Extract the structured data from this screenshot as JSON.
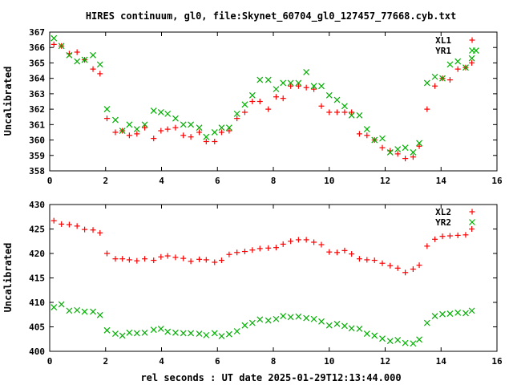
{
  "title": "HIRES continuum, gl0, file:Skynet_60704_gl0_127457_77668.cyb.txt",
  "xlabel": "rel seconds : UT date 2025-01-29T12:13:44.000",
  "colors": {
    "red": "#ff0000",
    "green": "#00b000"
  },
  "chart_data": [
    {
      "type": "scatter",
      "ylabel": "Uncalibrated",
      "xlim": [
        0,
        16
      ],
      "ylim": [
        358,
        367
      ],
      "xticks": [
        "0",
        "2",
        "4",
        "6",
        "8",
        "10",
        "12",
        "14",
        "16"
      ],
      "yticks": [
        "358",
        "359",
        "360",
        "361",
        "362",
        "363",
        "364",
        "365",
        "366",
        "367"
      ],
      "legend_position": "top-right",
      "grid": false,
      "series": [
        {
          "name": "XL1",
          "marker": "plus",
          "color": "#ff0000",
          "points": [
            [
              0.15,
              366.2
            ],
            [
              0.42,
              366.1
            ],
            [
              0.7,
              365.6
            ],
            [
              0.98,
              365.7
            ],
            [
              1.25,
              365.2
            ],
            [
              1.55,
              364.6
            ],
            [
              1.8,
              364.3
            ],
            [
              2.05,
              361.4
            ],
            [
              2.35,
              360.5
            ],
            [
              2.6,
              360.6
            ],
            [
              2.85,
              360.3
            ],
            [
              3.12,
              360.4
            ],
            [
              3.4,
              360.8
            ],
            [
              3.72,
              360.1
            ],
            [
              3.98,
              360.6
            ],
            [
              4.22,
              360.7
            ],
            [
              4.5,
              360.8
            ],
            [
              4.78,
              360.3
            ],
            [
              5.05,
              360.2
            ],
            [
              5.35,
              360.5
            ],
            [
              5.6,
              359.9
            ],
            [
              5.9,
              359.9
            ],
            [
              6.15,
              360.5
            ],
            [
              6.42,
              360.6
            ],
            [
              6.7,
              361.4
            ],
            [
              6.98,
              361.8
            ],
            [
              7.25,
              362.5
            ],
            [
              7.52,
              362.5
            ],
            [
              7.82,
              362.0
            ],
            [
              8.1,
              362.8
            ],
            [
              8.35,
              362.7
            ],
            [
              8.62,
              363.5
            ],
            [
              8.9,
              363.5
            ],
            [
              9.18,
              363.4
            ],
            [
              9.45,
              363.3
            ],
            [
              9.72,
              362.2
            ],
            [
              10.0,
              361.8
            ],
            [
              10.28,
              361.8
            ],
            [
              10.55,
              361.8
            ],
            [
              10.8,
              361.8
            ],
            [
              11.08,
              360.4
            ],
            [
              11.35,
              360.3
            ],
            [
              11.62,
              360.0
            ],
            [
              11.9,
              359.5
            ],
            [
              12.18,
              359.3
            ],
            [
              12.45,
              359.1
            ],
            [
              12.72,
              358.8
            ],
            [
              13.0,
              358.9
            ],
            [
              13.22,
              359.6
            ],
            [
              13.5,
              362.0
            ],
            [
              13.78,
              363.5
            ],
            [
              14.05,
              364.0
            ],
            [
              14.32,
              363.9
            ],
            [
              14.6,
              364.6
            ],
            [
              14.88,
              364.7
            ],
            [
              15.1,
              365.0
            ]
          ]
        },
        {
          "name": "YR1",
          "marker": "cross",
          "color": "#00b000",
          "points": [
            [
              0.15,
              366.6
            ],
            [
              0.42,
              366.1
            ],
            [
              0.7,
              365.5
            ],
            [
              0.98,
              365.1
            ],
            [
              1.25,
              365.2
            ],
            [
              1.55,
              365.5
            ],
            [
              1.8,
              364.9
            ],
            [
              2.05,
              362.0
            ],
            [
              2.35,
              361.3
            ],
            [
              2.6,
              360.6
            ],
            [
              2.85,
              361.0
            ],
            [
              3.12,
              360.7
            ],
            [
              3.4,
              361.0
            ],
            [
              3.72,
              361.9
            ],
            [
              3.98,
              361.8
            ],
            [
              4.22,
              361.7
            ],
            [
              4.5,
              361.4
            ],
            [
              4.78,
              361.0
            ],
            [
              5.05,
              361.0
            ],
            [
              5.35,
              360.8
            ],
            [
              5.6,
              360.2
            ],
            [
              5.9,
              360.5
            ],
            [
              6.15,
              360.8
            ],
            [
              6.42,
              360.8
            ],
            [
              6.7,
              361.7
            ],
            [
              6.98,
              362.3
            ],
            [
              7.25,
              362.9
            ],
            [
              7.52,
              363.9
            ],
            [
              7.82,
              363.9
            ],
            [
              8.1,
              363.3
            ],
            [
              8.35,
              363.7
            ],
            [
              8.62,
              363.7
            ],
            [
              8.9,
              363.7
            ],
            [
              9.18,
              364.4
            ],
            [
              9.45,
              363.5
            ],
            [
              9.72,
              363.5
            ],
            [
              10.0,
              362.9
            ],
            [
              10.28,
              362.6
            ],
            [
              10.55,
              362.2
            ],
            [
              10.8,
              361.6
            ],
            [
              11.08,
              361.6
            ],
            [
              11.35,
              360.7
            ],
            [
              11.62,
              360.0
            ],
            [
              11.9,
              360.1
            ],
            [
              12.18,
              359.2
            ],
            [
              12.45,
              359.4
            ],
            [
              12.72,
              359.5
            ],
            [
              13.0,
              359.2
            ],
            [
              13.22,
              359.8
            ],
            [
              13.5,
              363.7
            ],
            [
              13.78,
              364.1
            ],
            [
              14.05,
              364.0
            ],
            [
              14.32,
              364.9
            ],
            [
              14.6,
              365.1
            ],
            [
              14.88,
              364.7
            ],
            [
              15.1,
              365.3
            ],
            [
              15.25,
              365.8
            ]
          ]
        }
      ]
    },
    {
      "type": "scatter",
      "ylabel": "Uncalibrated",
      "xlim": [
        0,
        16
      ],
      "ylim": [
        400,
        430
      ],
      "xticks": [
        "0",
        "2",
        "4",
        "6",
        "8",
        "10",
        "12",
        "14",
        "16"
      ],
      "yticks": [
        "400",
        "405",
        "410",
        "415",
        "420",
        "425",
        "430"
      ],
      "legend_position": "top-right",
      "grid": false,
      "series": [
        {
          "name": "XL2",
          "marker": "plus",
          "color": "#ff0000",
          "points": [
            [
              0.15,
              426.7
            ],
            [
              0.42,
              426.0
            ],
            [
              0.7,
              425.9
            ],
            [
              0.98,
              425.6
            ],
            [
              1.25,
              424.9
            ],
            [
              1.55,
              424.8
            ],
            [
              1.8,
              424.2
            ],
            [
              2.05,
              420.0
            ],
            [
              2.35,
              418.9
            ],
            [
              2.6,
              418.9
            ],
            [
              2.85,
              418.7
            ],
            [
              3.12,
              418.5
            ],
            [
              3.4,
              418.9
            ],
            [
              3.72,
              418.6
            ],
            [
              3.98,
              419.3
            ],
            [
              4.22,
              419.5
            ],
            [
              4.5,
              419.2
            ],
            [
              4.78,
              419.0
            ],
            [
              5.05,
              418.4
            ],
            [
              5.35,
              418.8
            ],
            [
              5.6,
              418.7
            ],
            [
              5.9,
              418.2
            ],
            [
              6.15,
              418.6
            ],
            [
              6.42,
              419.8
            ],
            [
              6.7,
              420.2
            ],
            [
              6.98,
              420.4
            ],
            [
              7.25,
              420.7
            ],
            [
              7.52,
              421.0
            ],
            [
              7.82,
              421.1
            ],
            [
              8.1,
              421.2
            ],
            [
              8.35,
              421.9
            ],
            [
              8.62,
              422.5
            ],
            [
              8.9,
              422.8
            ],
            [
              9.18,
              422.8
            ],
            [
              9.45,
              422.3
            ],
            [
              9.72,
              421.8
            ],
            [
              10.0,
              420.3
            ],
            [
              10.28,
              420.2
            ],
            [
              10.55,
              420.6
            ],
            [
              10.8,
              419.9
            ],
            [
              11.08,
              418.9
            ],
            [
              11.35,
              418.7
            ],
            [
              11.62,
              418.6
            ],
            [
              11.9,
              418.0
            ],
            [
              12.18,
              417.5
            ],
            [
              12.45,
              417.0
            ],
            [
              12.72,
              416.1
            ],
            [
              13.0,
              416.8
            ],
            [
              13.22,
              417.6
            ],
            [
              13.5,
              421.5
            ],
            [
              13.78,
              422.9
            ],
            [
              14.05,
              423.5
            ],
            [
              14.32,
              423.6
            ],
            [
              14.6,
              423.7
            ],
            [
              14.88,
              423.8
            ],
            [
              15.1,
              425.0
            ]
          ]
        },
        {
          "name": "YR2",
          "marker": "cross",
          "color": "#00b000",
          "points": [
            [
              0.15,
              409.0
            ],
            [
              0.42,
              409.6
            ],
            [
              0.7,
              408.3
            ],
            [
              0.98,
              408.4
            ],
            [
              1.25,
              408.1
            ],
            [
              1.55,
              408.1
            ],
            [
              1.8,
              407.4
            ],
            [
              2.05,
              404.3
            ],
            [
              2.35,
              403.6
            ],
            [
              2.6,
              403.2
            ],
            [
              2.85,
              403.8
            ],
            [
              3.12,
              403.7
            ],
            [
              3.4,
              403.8
            ],
            [
              3.72,
              404.4
            ],
            [
              3.98,
              404.6
            ],
            [
              4.22,
              404.0
            ],
            [
              4.5,
              403.8
            ],
            [
              4.78,
              403.7
            ],
            [
              5.05,
              403.7
            ],
            [
              5.35,
              403.6
            ],
            [
              5.6,
              403.3
            ],
            [
              5.9,
              403.7
            ],
            [
              6.15,
              403.1
            ],
            [
              6.42,
              403.5
            ],
            [
              6.7,
              404.1
            ],
            [
              6.98,
              405.3
            ],
            [
              7.25,
              405.8
            ],
            [
              7.52,
              406.5
            ],
            [
              7.82,
              406.3
            ],
            [
              8.1,
              406.6
            ],
            [
              8.35,
              407.2
            ],
            [
              8.62,
              407.0
            ],
            [
              8.9,
              407.1
            ],
            [
              9.18,
              406.8
            ],
            [
              9.45,
              406.6
            ],
            [
              9.72,
              406.1
            ],
            [
              10.0,
              405.3
            ],
            [
              10.28,
              405.6
            ],
            [
              10.55,
              405.2
            ],
            [
              10.8,
              404.7
            ],
            [
              11.08,
              404.6
            ],
            [
              11.35,
              403.6
            ],
            [
              11.62,
              403.2
            ],
            [
              11.9,
              402.6
            ],
            [
              12.18,
              402.1
            ],
            [
              12.45,
              402.3
            ],
            [
              12.72,
              401.7
            ],
            [
              13.0,
              401.6
            ],
            [
              13.22,
              402.4
            ],
            [
              13.5,
              405.8
            ],
            [
              13.78,
              407.2
            ],
            [
              14.05,
              407.6
            ],
            [
              14.32,
              407.7
            ],
            [
              14.6,
              407.9
            ],
            [
              14.88,
              407.8
            ],
            [
              15.1,
              408.3
            ]
          ]
        }
      ]
    }
  ]
}
